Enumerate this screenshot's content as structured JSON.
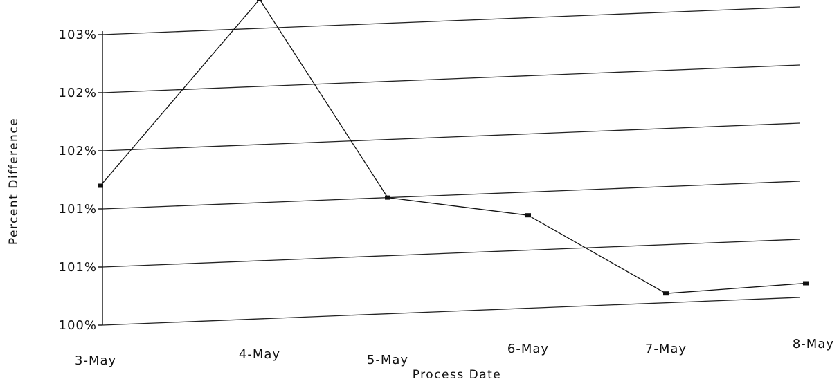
{
  "chart_data": {
    "type": "line",
    "categories": [
      "3-May",
      "4-May",
      "5-May",
      "6-May",
      "7-May",
      "8-May"
    ],
    "values": [
      101.2,
      102.75,
      101.0,
      100.8,
      100.08,
      100.12
    ],
    "y_ticks": [
      100.0,
      100.5,
      101.0,
      101.5,
      102.0,
      102.5
    ],
    "y_tick_labels": [
      "100%",
      "101%",
      "101%",
      "102%",
      "102%",
      "103%"
    ],
    "ylim": [
      100.0,
      102.5
    ],
    "xlabel": "Process Date",
    "ylabel": "Percent Difference",
    "title": "",
    "grid": true,
    "legend": "none",
    "colors": {
      "line": "#111111",
      "grid": "#222222",
      "text": "#111111"
    }
  }
}
